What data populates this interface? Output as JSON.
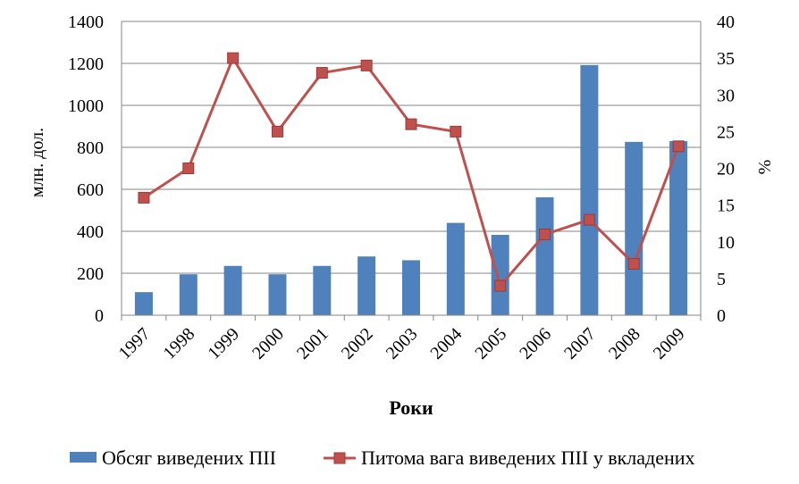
{
  "chart_data": {
    "type": "bar",
    "categories": [
      "1997",
      "1998",
      "1999",
      "2000",
      "2001",
      "2002",
      "2003",
      "2004",
      "2005",
      "2006",
      "2007",
      "2008",
      "2009"
    ],
    "series": [
      {
        "name": "Обсяг виведених ПІІ",
        "type": "bar",
        "axis": "left",
        "values": [
          110,
          195,
          235,
          195,
          235,
          280,
          262,
          440,
          383,
          562,
          1192,
          826,
          830
        ]
      },
      {
        "name": "Питома вага виведених ПІІ у вкладених",
        "type": "line",
        "axis": "right",
        "values": [
          16,
          20,
          35,
          25,
          33,
          34,
          26,
          25,
          4,
          11,
          13,
          7,
          23
        ]
      }
    ],
    "xlabel": "Роки",
    "ylabel": "млн. дол.",
    "y2label": "%",
    "ylim": [
      0,
      1400
    ],
    "y2lim": [
      0,
      40
    ],
    "yticks": [
      "0",
      "200",
      "400",
      "600",
      "800",
      "1000",
      "1200",
      "1400"
    ],
    "y2ticks": [
      "0",
      "5",
      "10",
      "15",
      "20",
      "25",
      "30",
      "35",
      "40"
    ],
    "grid": true,
    "legend": "bottom",
    "colors": {
      "bars": "#4F81BD",
      "line": "#C0504D",
      "grid": "#868686"
    }
  }
}
